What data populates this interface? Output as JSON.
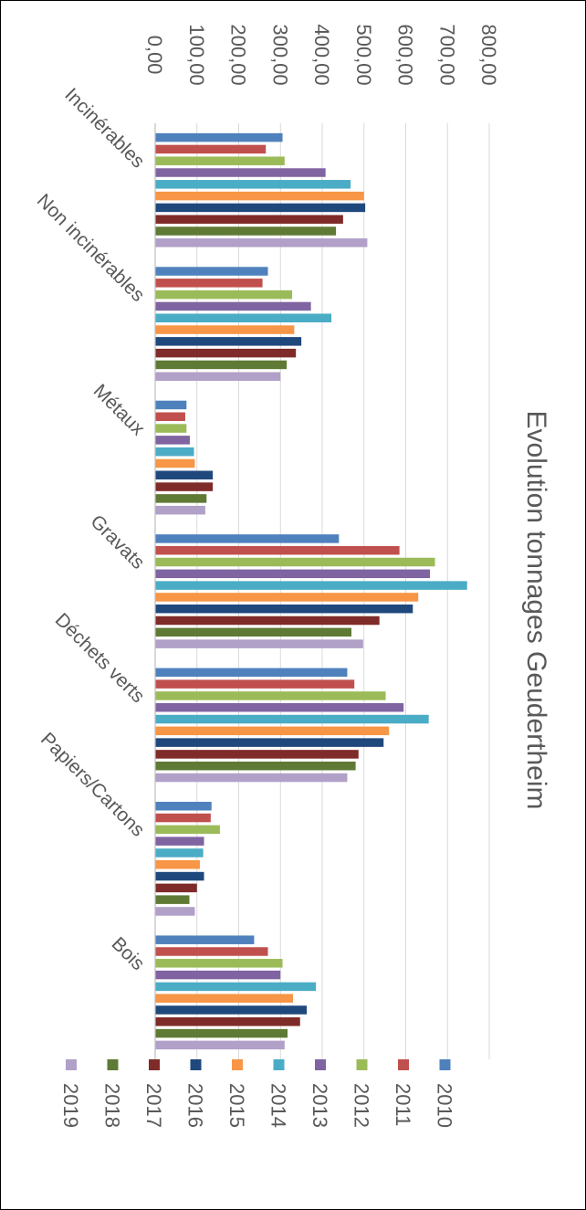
{
  "chart_data": {
    "type": "bar",
    "orientation": "horizontal",
    "title": "Evolution tonnages Geudertheim",
    "xlabel": "",
    "ylabel": "",
    "categories": [
      "Incinérables",
      "Non incinérables",
      "Métaux",
      "Gravats",
      "Déchets verts",
      "Papiers/Cartons",
      "Bois"
    ],
    "value_axis": {
      "min": 0,
      "max": 800,
      "step": 100,
      "tick_labels": [
        "0,00",
        "100,00",
        "200,00",
        "300,00",
        "400,00",
        "500,00",
        "600,00",
        "700,00",
        "800,00"
      ]
    },
    "grid": true,
    "legend_position": "bottom",
    "series": [
      {
        "name": "2010",
        "color": "#4F81BD",
        "values": [
          305,
          270,
          75,
          440,
          460,
          135,
          237
        ]
      },
      {
        "name": "2011",
        "color": "#C0504D",
        "values": [
          265,
          257,
          72,
          585,
          477,
          133,
          270
        ]
      },
      {
        "name": "2012",
        "color": "#9BBB59",
        "values": [
          310,
          328,
          75,
          670,
          552,
          155,
          305
        ]
      },
      {
        "name": "2013",
        "color": "#8064A2",
        "values": [
          408,
          373,
          83,
          658,
          595,
          117,
          300
        ]
      },
      {
        "name": "2014",
        "color": "#4BACC6",
        "values": [
          468,
          422,
          93,
          747,
          655,
          115,
          385
        ]
      },
      {
        "name": "2015",
        "color": "#F79646",
        "values": [
          500,
          333,
          95,
          630,
          560,
          107,
          330
        ]
      },
      {
        "name": "2016",
        "color": "#1F497D",
        "values": [
          503,
          350,
          138,
          617,
          547,
          117,
          363
        ]
      },
      {
        "name": "2017",
        "color": "#7F2B29",
        "values": [
          450,
          337,
          138,
          537,
          487,
          100,
          347
        ]
      },
      {
        "name": "2018",
        "color": "#5F7A35",
        "values": [
          433,
          315,
          123,
          470,
          480,
          82,
          317
        ]
      },
      {
        "name": "2019",
        "color": "#B1A0C7",
        "values": [
          508,
          300,
          120,
          498,
          460,
          95,
          310
        ]
      }
    ]
  }
}
